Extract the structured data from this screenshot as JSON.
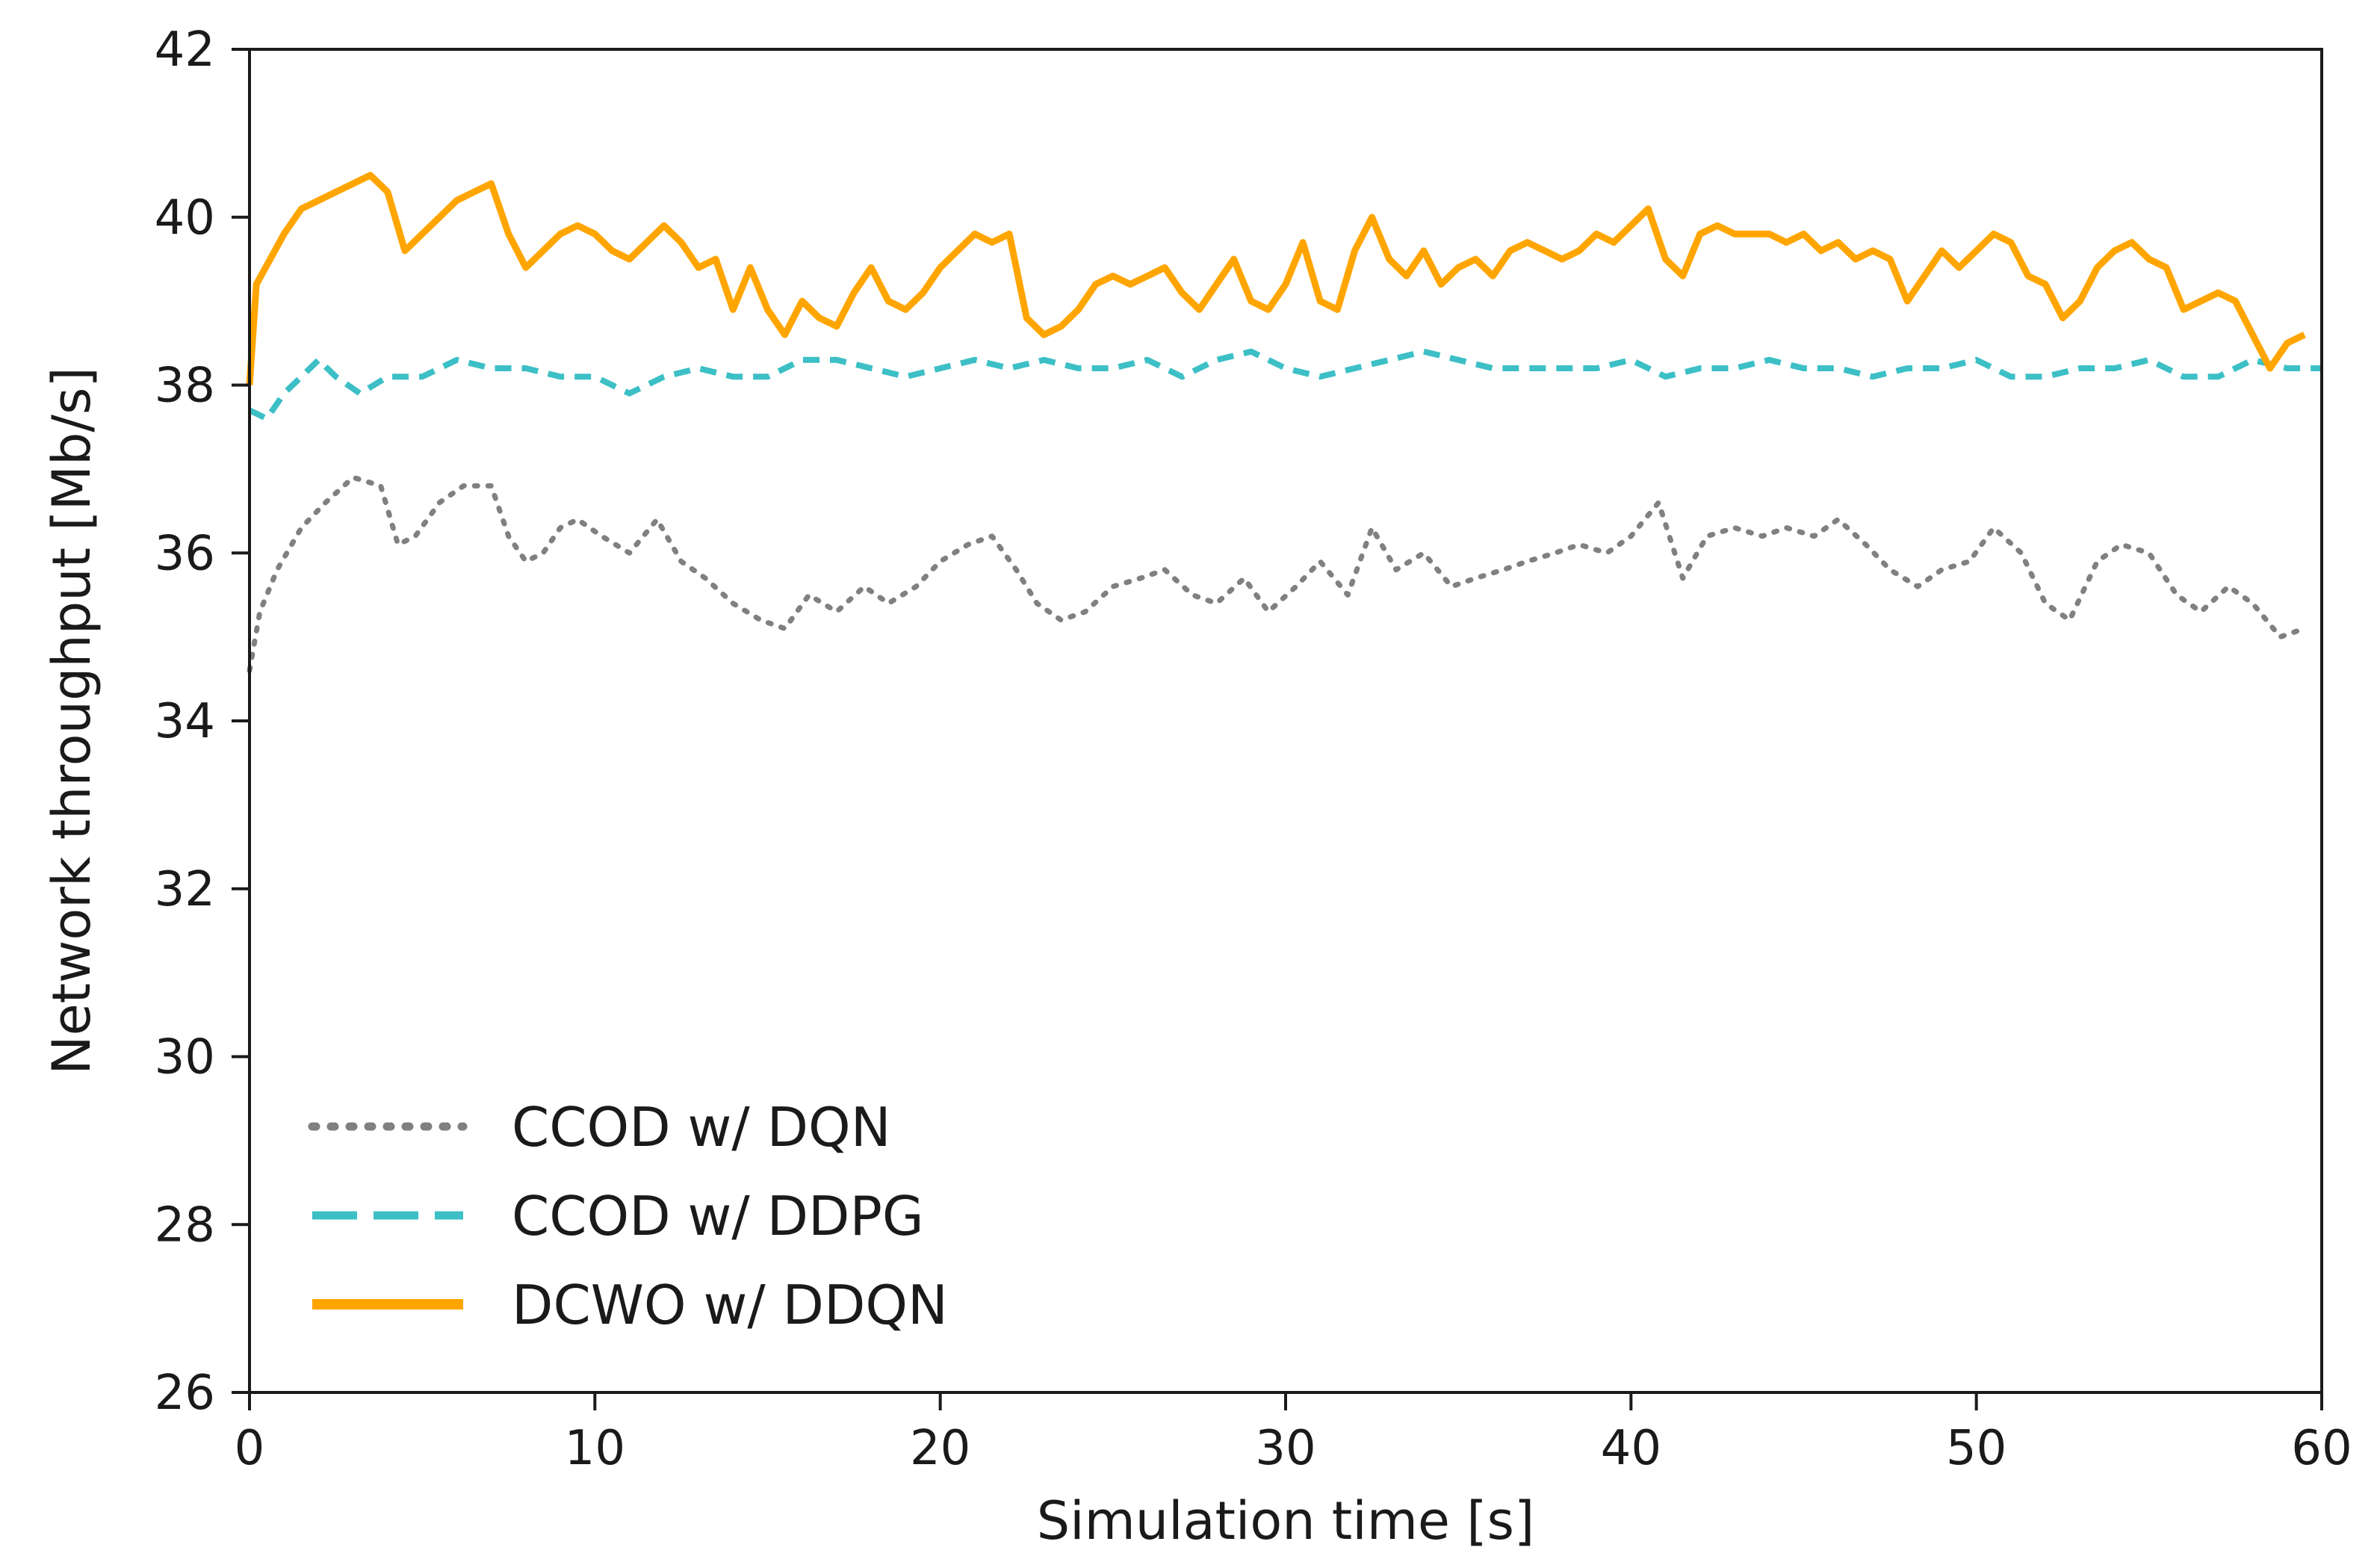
{
  "chart_data": {
    "type": "line",
    "xlabel": "Simulation time [s]",
    "ylabel": "Network throughput [Mb/s]",
    "xlim": [
      0,
      60
    ],
    "ylim": [
      26,
      42
    ],
    "xticks": [
      0,
      10,
      20,
      30,
      40,
      50,
      60
    ],
    "yticks": [
      26,
      28,
      30,
      32,
      34,
      36,
      38,
      40,
      42
    ],
    "grid": false,
    "legend_position": "lower-left",
    "series": [
      {
        "name": "CCOD w/ DQN",
        "color": "#808080",
        "style": "dotted",
        "x": [
          0,
          0.3,
          0.8,
          1.5,
          2.2,
          3.0,
          3.8,
          4.3,
          4.8,
          5.5,
          6.2,
          7.0,
          7.5,
          8.0,
          8.5,
          9.0,
          9.5,
          10.2,
          11.0,
          11.8,
          12.5,
          13.2,
          14.0,
          14.8,
          15.5,
          16.2,
          17.0,
          17.8,
          18.5,
          19.3,
          20.0,
          20.8,
          21.5,
          22.2,
          22.8,
          23.5,
          24.2,
          25.0,
          25.8,
          26.5,
          27.3,
          28.0,
          28.8,
          29.5,
          30.3,
          31.0,
          31.8,
          32.5,
          33.2,
          34.0,
          34.8,
          35.5,
          36.3,
          37.0,
          37.8,
          38.5,
          39.3,
          40.0,
          40.8,
          41.5,
          42.2,
          43.0,
          43.8,
          44.5,
          45.3,
          46.0,
          46.8,
          47.5,
          48.3,
          49.0,
          49.8,
          50.5,
          51.3,
          52.0,
          52.7,
          53.5,
          54.2,
          55.0,
          55.8,
          56.5,
          57.3,
          58.0,
          58.8,
          59.5
        ],
        "values": [
          34.6,
          35.3,
          35.8,
          36.3,
          36.6,
          36.9,
          36.8,
          36.1,
          36.2,
          36.6,
          36.8,
          36.8,
          36.2,
          35.9,
          36.0,
          36.3,
          36.4,
          36.2,
          36.0,
          36.4,
          35.9,
          35.7,
          35.4,
          35.2,
          35.1,
          35.5,
          35.3,
          35.6,
          35.4,
          35.6,
          35.9,
          36.1,
          36.2,
          35.8,
          35.4,
          35.2,
          35.3,
          35.6,
          35.7,
          35.8,
          35.5,
          35.4,
          35.7,
          35.3,
          35.6,
          35.9,
          35.5,
          36.3,
          35.8,
          36.0,
          35.6,
          35.7,
          35.8,
          35.9,
          36.0,
          36.1,
          36.0,
          36.2,
          36.6,
          35.7,
          36.2,
          36.3,
          36.2,
          36.3,
          36.2,
          36.4,
          36.1,
          35.8,
          35.6,
          35.8,
          35.9,
          36.3,
          36.0,
          35.4,
          35.2,
          35.9,
          36.1,
          36.0,
          35.5,
          35.3,
          35.6,
          35.4,
          35.0,
          35.1
        ]
      },
      {
        "name": "CCOD w/ DDPG",
        "color": "#3dbfc6",
        "style": "dashed",
        "x": [
          0,
          0.5,
          1.0,
          1.5,
          2.0,
          2.5,
          3.2,
          4.0,
          5.0,
          6.0,
          7.0,
          8.0,
          9.0,
          10.0,
          11.0,
          12.0,
          13.0,
          14.0,
          15.0,
          16.0,
          17.0,
          18.0,
          19.0,
          20.0,
          21.0,
          22.0,
          23.0,
          24.0,
          25.0,
          26.0,
          27.0,
          28.0,
          29.0,
          30.0,
          31.0,
          32.0,
          33.0,
          34.0,
          35.0,
          36.0,
          37.0,
          38.0,
          39.0,
          40.0,
          41.0,
          42.0,
          43.0,
          44.0,
          45.0,
          46.0,
          47.0,
          48.0,
          49.0,
          50.0,
          51.0,
          52.0,
          53.0,
          54.0,
          55.0,
          56.0,
          57.0,
          58.0,
          59.0,
          60.0
        ],
        "values": [
          37.7,
          37.6,
          37.9,
          38.1,
          38.3,
          38.1,
          37.9,
          38.1,
          38.1,
          38.3,
          38.2,
          38.2,
          38.1,
          38.1,
          37.9,
          38.1,
          38.2,
          38.1,
          38.1,
          38.3,
          38.3,
          38.2,
          38.1,
          38.2,
          38.3,
          38.2,
          38.3,
          38.2,
          38.2,
          38.3,
          38.1,
          38.3,
          38.4,
          38.2,
          38.1,
          38.2,
          38.3,
          38.4,
          38.3,
          38.2,
          38.2,
          38.2,
          38.2,
          38.3,
          38.1,
          38.2,
          38.2,
          38.3,
          38.2,
          38.2,
          38.1,
          38.2,
          38.2,
          38.3,
          38.1,
          38.1,
          38.2,
          38.2,
          38.3,
          38.1,
          38.1,
          38.3,
          38.2,
          38.2
        ]
      },
      {
        "name": "DCWO w/ DDQN",
        "color": "#ffa500",
        "style": "solid",
        "x": [
          0,
          0.2,
          0.6,
          1.0,
          1.5,
          2.0,
          2.5,
          3.0,
          3.5,
          4.0,
          4.5,
          5.0,
          5.5,
          6.0,
          6.5,
          7.0,
          7.5,
          8.0,
          8.5,
          9.0,
          9.5,
          10.0,
          10.5,
          11.0,
          11.5,
          12.0,
          12.5,
          13.0,
          13.5,
          14.0,
          14.5,
          15.0,
          15.5,
          16.0,
          16.5,
          17.0,
          17.5,
          18.0,
          18.5,
          19.0,
          19.5,
          20.0,
          20.5,
          21.0,
          21.5,
          22.0,
          22.5,
          23.0,
          23.5,
          24.0,
          24.5,
          25.0,
          25.5,
          26.0,
          26.5,
          27.0,
          27.5,
          28.0,
          28.5,
          29.0,
          29.5,
          30.0,
          30.5,
          31.0,
          31.5,
          32.0,
          32.5,
          33.0,
          33.5,
          34.0,
          34.5,
          35.0,
          35.5,
          36.0,
          36.5,
          37.0,
          37.5,
          38.0,
          38.5,
          39.0,
          39.5,
          40.0,
          40.5,
          41.0,
          41.5,
          42.0,
          42.5,
          43.0,
          43.5,
          44.0,
          44.5,
          45.0,
          45.5,
          46.0,
          46.5,
          47.0,
          47.5,
          48.0,
          48.5,
          49.0,
          49.5,
          50.0,
          50.5,
          51.0,
          51.5,
          52.0,
          52.5,
          53.0,
          53.5,
          54.0,
          54.5,
          55.0,
          55.5,
          56.0,
          56.5,
          57.0,
          57.5,
          58.0,
          58.5,
          59.0,
          59.5
        ],
        "values": [
          38.0,
          39.2,
          39.5,
          39.8,
          40.1,
          40.2,
          40.3,
          40.4,
          40.5,
          40.3,
          39.6,
          39.8,
          40.0,
          40.2,
          40.3,
          40.4,
          39.8,
          39.4,
          39.6,
          39.8,
          39.9,
          39.8,
          39.6,
          39.5,
          39.7,
          39.9,
          39.7,
          39.4,
          39.5,
          38.9,
          39.4,
          38.9,
          38.6,
          39.0,
          38.8,
          38.7,
          39.1,
          39.4,
          39.0,
          38.9,
          39.1,
          39.4,
          39.6,
          39.8,
          39.7,
          39.8,
          38.8,
          38.6,
          38.7,
          38.9,
          39.2,
          39.3,
          39.2,
          39.3,
          39.4,
          39.1,
          38.9,
          39.2,
          39.5,
          39.0,
          38.9,
          39.2,
          39.7,
          39.0,
          38.9,
          39.6,
          40.0,
          39.5,
          39.3,
          39.6,
          39.2,
          39.4,
          39.5,
          39.3,
          39.6,
          39.7,
          39.6,
          39.5,
          39.6,
          39.8,
          39.7,
          39.9,
          40.1,
          39.5,
          39.3,
          39.8,
          39.9,
          39.8,
          39.8,
          39.8,
          39.7,
          39.8,
          39.6,
          39.7,
          39.5,
          39.6,
          39.5,
          39.0,
          39.3,
          39.6,
          39.4,
          39.6,
          39.8,
          39.7,
          39.3,
          39.2,
          38.8,
          39.0,
          39.4,
          39.6,
          39.7,
          39.5,
          39.4,
          38.9,
          39.0,
          39.1,
          39.0,
          38.6,
          38.2,
          38.5,
          38.6
        ]
      }
    ]
  }
}
